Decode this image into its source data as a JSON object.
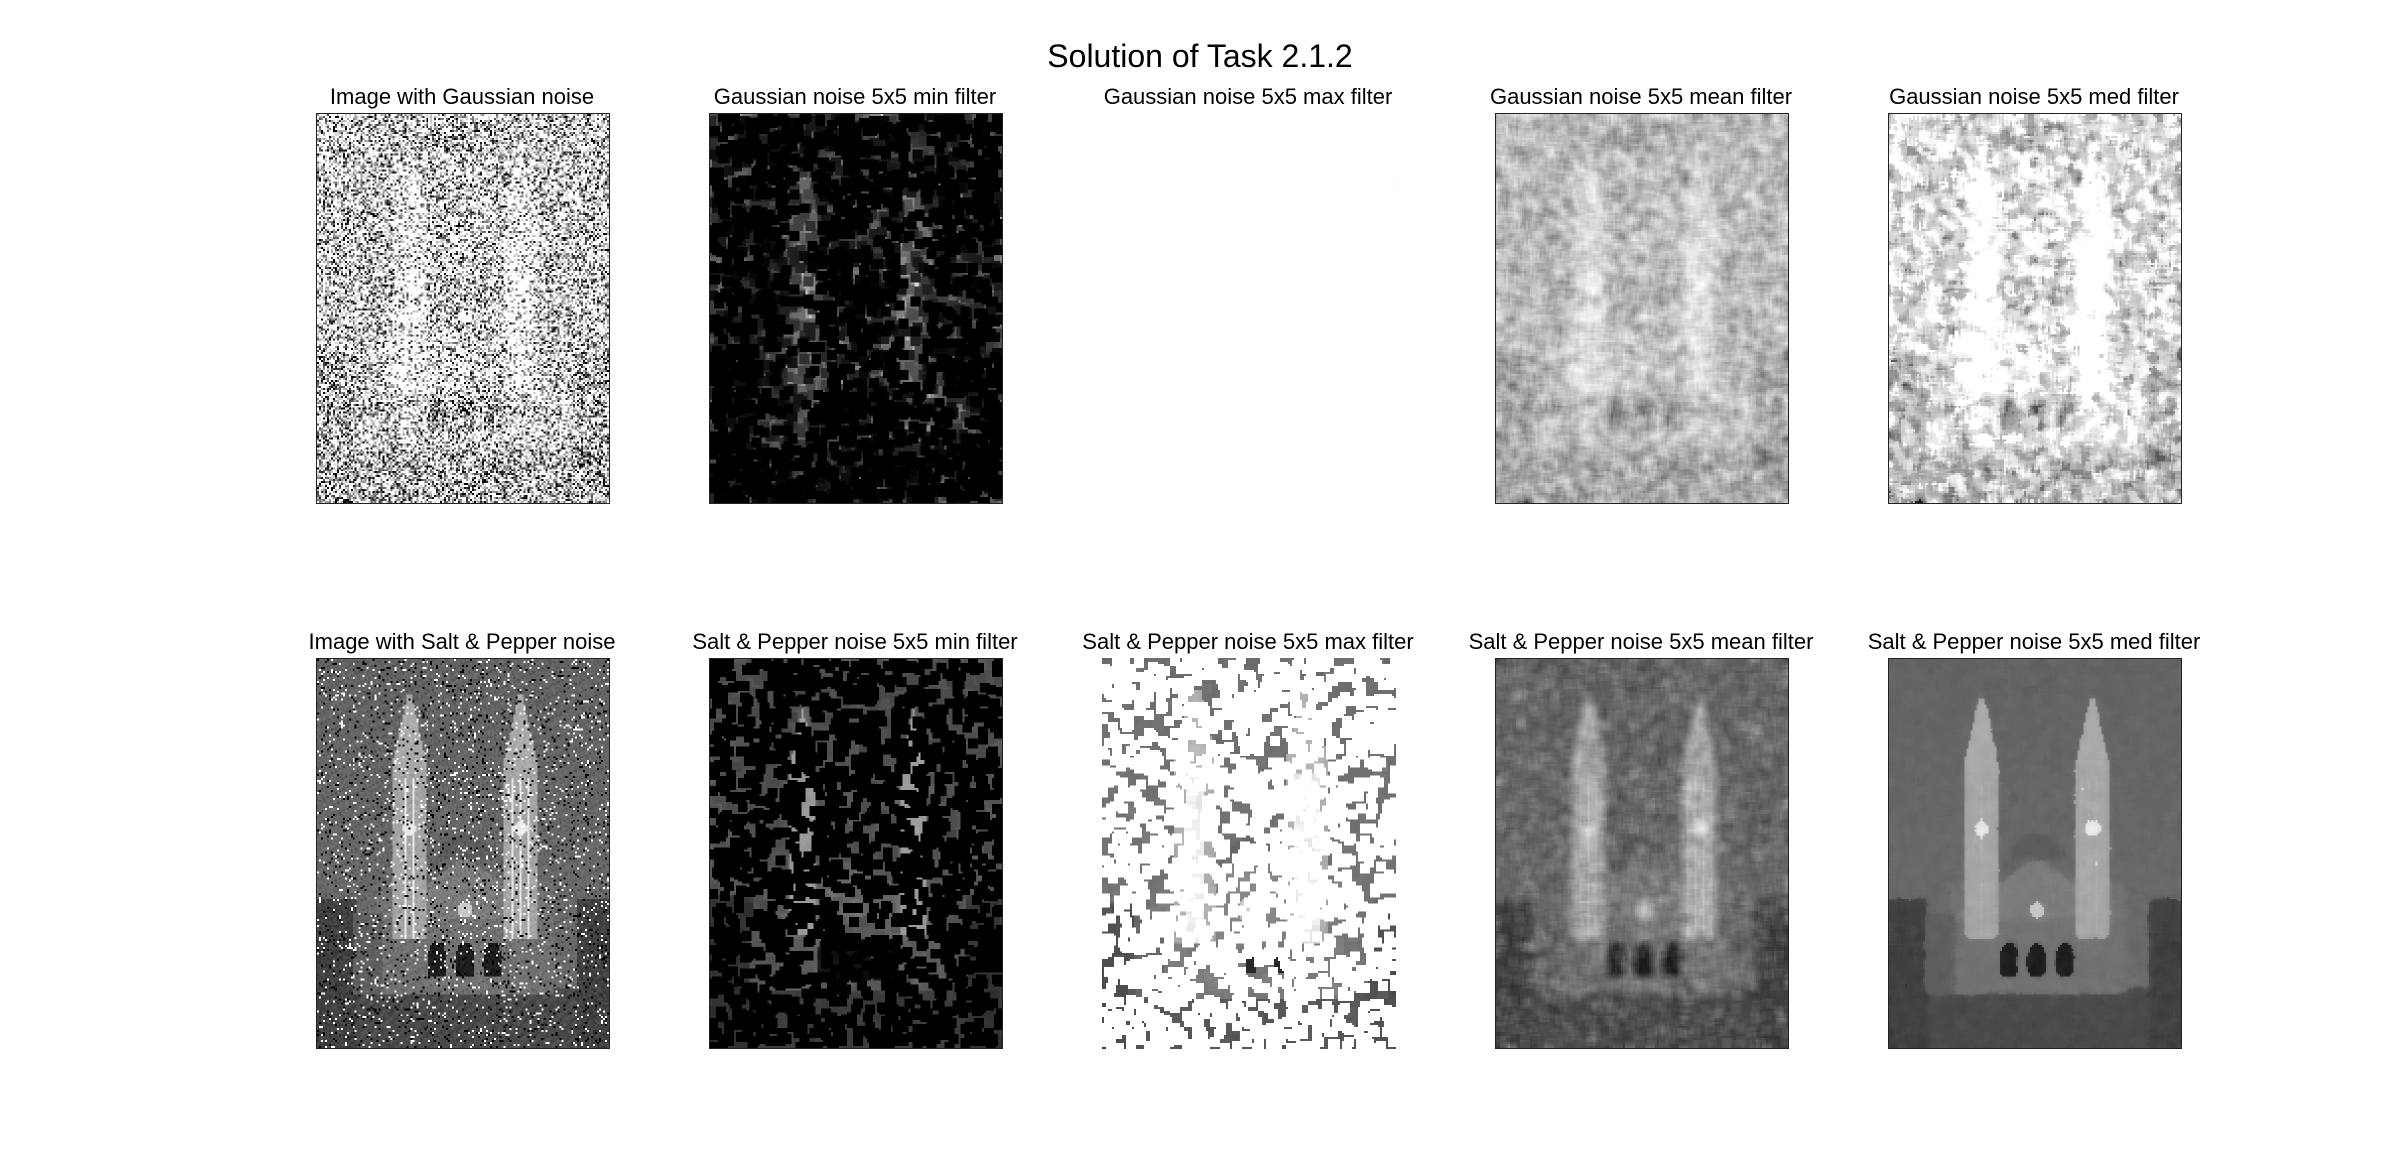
{
  "figure": {
    "title": "Solution of Task 2.1.2"
  },
  "panels": [
    {
      "title": "Image with Gaussian noise",
      "style": "gaussian-noisy"
    },
    {
      "title": "Gaussian noise 5x5 min filter",
      "style": "gaussian-min"
    },
    {
      "title": "Gaussian noise 5x5 max filter",
      "style": "gaussian-max"
    },
    {
      "title": "Gaussian noise 5x5 mean filter",
      "style": "gaussian-mean"
    },
    {
      "title": "Gaussian noise 5x5 med filter",
      "style": "gaussian-med"
    },
    {
      "title": "Image with Salt & Pepper noise",
      "style": "sp-noisy"
    },
    {
      "title": "Salt & Pepper noise 5x5 min filter",
      "style": "sp-min"
    },
    {
      "title": "Salt & Pepper noise 5x5 max filter",
      "style": "sp-max"
    },
    {
      "title": "Salt & Pepper noise 5x5 mean filter",
      "style": "sp-mean"
    },
    {
      "title": "Salt & Pepper noise 5x5 med filter",
      "style": "sp-med"
    }
  ]
}
